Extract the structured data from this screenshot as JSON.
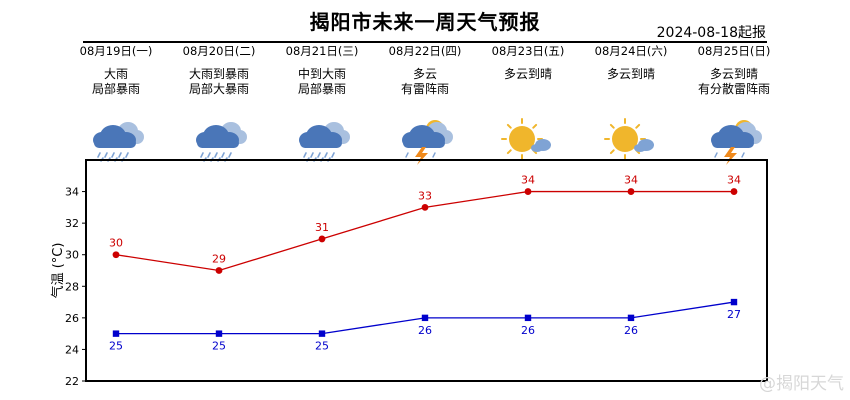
{
  "header": {
    "title": "揭阳市未来一周天气预报",
    "issue_date": "2024-08-18起报"
  },
  "days": [
    {
      "date": "08月19日(一)",
      "line1": "大雨",
      "line2": "局部暴雨",
      "icon": "rain-cloud-icon"
    },
    {
      "date": "08月20日(二)",
      "line1": "大雨到暴雨",
      "line2": "局部大暴雨",
      "icon": "rain-cloud-icon"
    },
    {
      "date": "08月21日(三)",
      "line1": "中到大雨",
      "line2": "局部暴雨",
      "icon": "rain-cloud-icon"
    },
    {
      "date": "08月22日(四)",
      "line1": "多云",
      "line2": "有雷阵雨",
      "icon": "thunder-cloud-icon"
    },
    {
      "date": "08月23日(五)",
      "line1": "多云到晴",
      "line2": "",
      "icon": "sun-cloud-icon"
    },
    {
      "date": "08月24日(六)",
      "line1": "多云到晴",
      "line2": "",
      "icon": "sun-cloud-icon"
    },
    {
      "date": "08月25日(日)",
      "line1": "多云到晴",
      "line2": "有分散雷阵雨",
      "icon": "thunder-cloud-icon"
    }
  ],
  "chart_data": {
    "type": "line",
    "ylabel": "气温 (°C)",
    "ylim": [
      22,
      36
    ],
    "yticks": [
      22,
      24,
      26,
      28,
      30,
      32,
      34
    ],
    "categories": [
      "08月19日(一)",
      "08月20日(二)",
      "08月21日(三)",
      "08月22日(四)",
      "08月23日(五)",
      "08月24日(六)",
      "08月25日(日)"
    ],
    "series": [
      {
        "values": [
          30,
          29,
          31,
          33,
          34,
          34,
          34
        ],
        "color": "#cc0000",
        "marker": "circle"
      },
      {
        "values": [
          25,
          25,
          25,
          26,
          26,
          26,
          27
        ],
        "color": "#0000cc",
        "marker": "square"
      }
    ],
    "grid": false
  },
  "watermark": "@揭阳天气",
  "colors": {
    "high": "#cc0000",
    "low": "#0000cc",
    "cloud": "#4a76b8",
    "sun": "#f0b62c"
  }
}
